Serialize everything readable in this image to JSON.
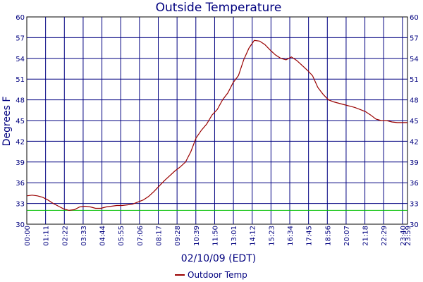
{
  "chart_data": {
    "type": "line",
    "title": "Outside Temperature",
    "xlabel": "02/10/09 (EDT)",
    "ylabel": "Degrees F",
    "ylim": [
      30,
      60
    ],
    "yticks": [
      30,
      33,
      36,
      39,
      42,
      45,
      48,
      51,
      54,
      57,
      60
    ],
    "xlim": [
      "00:00",
      "23:59"
    ],
    "xticks": [
      "00:00",
      "01:11",
      "02:22",
      "03:33",
      "04:44",
      "05:55",
      "07:06",
      "08:17",
      "09:28",
      "10:39",
      "11:50",
      "13:01",
      "14:12",
      "15:23",
      "16:34",
      "17:45",
      "18:56",
      "20:07",
      "21:18",
      "22:29",
      "23:40",
      "23:59"
    ],
    "grid": true,
    "legend_position": "bottom-center",
    "reference_line": {
      "value": 32,
      "color": "#00c000"
    },
    "colors": {
      "line": "#990000",
      "grid": "#000080",
      "text": "#00007f"
    },
    "series": [
      {
        "name": "Outdoor Temp",
        "x": [
          "00:00",
          "00:20",
          "00:40",
          "01:00",
          "01:20",
          "01:40",
          "02:00",
          "02:20",
          "02:40",
          "03:00",
          "03:20",
          "03:40",
          "04:00",
          "04:20",
          "04:40",
          "05:00",
          "05:20",
          "05:40",
          "06:00",
          "06:20",
          "06:40",
          "07:00",
          "07:20",
          "07:40",
          "08:00",
          "08:20",
          "08:40",
          "09:00",
          "09:20",
          "09:40",
          "10:00",
          "10:20",
          "10:40",
          "11:00",
          "11:20",
          "11:40",
          "12:00",
          "12:20",
          "12:40",
          "13:00",
          "13:20",
          "13:40",
          "14:00",
          "14:20",
          "14:40",
          "15:00",
          "15:20",
          "15:40",
          "16:00",
          "16:20",
          "16:40",
          "17:00",
          "17:20",
          "17:40",
          "18:00",
          "18:20",
          "18:40",
          "19:00",
          "19:20",
          "19:40",
          "20:00",
          "20:20",
          "20:40",
          "21:00",
          "21:20",
          "21:40",
          "22:00",
          "22:20",
          "22:40",
          "23:00",
          "23:20",
          "23:40",
          "23:59"
        ],
        "values": [
          34.1,
          34.2,
          34.1,
          33.9,
          33.5,
          33.0,
          32.6,
          32.2,
          32.0,
          32.1,
          32.5,
          32.6,
          32.5,
          32.3,
          32.3,
          32.5,
          32.6,
          32.7,
          32.7,
          32.8,
          32.9,
          33.2,
          33.5,
          34.0,
          34.7,
          35.5,
          36.3,
          37.0,
          37.7,
          38.3,
          39.0,
          40.5,
          42.5,
          43.6,
          44.5,
          45.8,
          46.6,
          48.0,
          49.0,
          50.5,
          51.5,
          53.8,
          55.5,
          56.6,
          56.5,
          56.0,
          55.2,
          54.5,
          54.0,
          53.8,
          54.2,
          53.7,
          53.0,
          52.3,
          51.5,
          49.8,
          48.8,
          48.0,
          47.7,
          47.5,
          47.3,
          47.1,
          46.9,
          46.6,
          46.3,
          45.8,
          45.2,
          45.0,
          45.0,
          44.8,
          44.7,
          44.7,
          44.7
        ]
      }
    ]
  }
}
